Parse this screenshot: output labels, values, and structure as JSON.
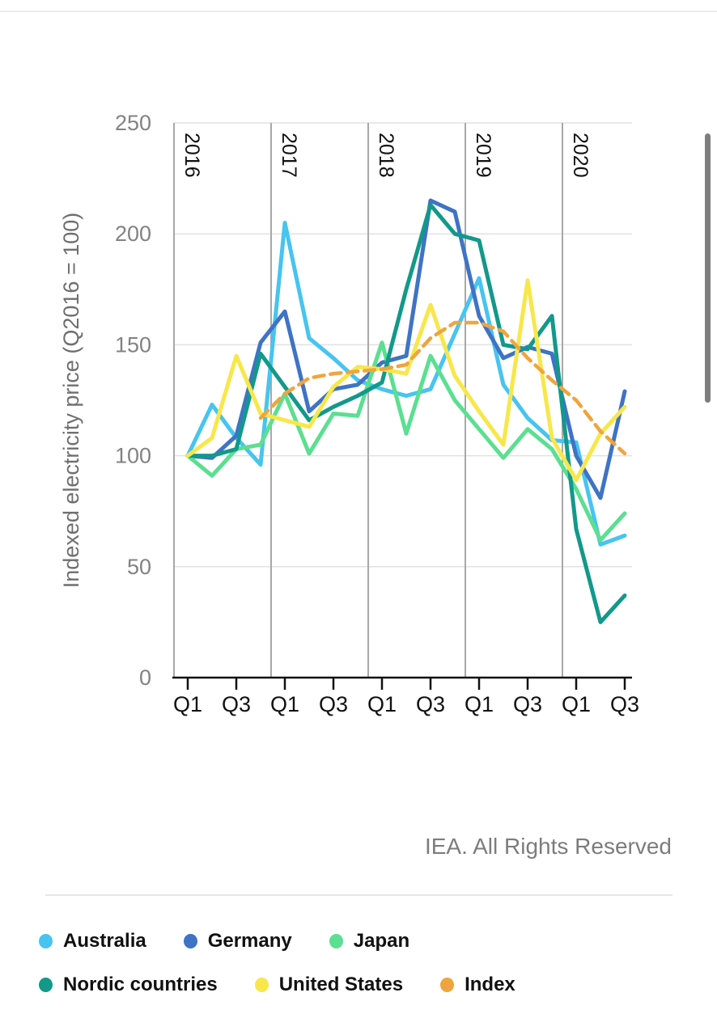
{
  "page": {
    "footer_note": "IEA. All Rights Reserved"
  },
  "y_axis": {
    "title": "Indexed electricity price (Q2016 = 100)",
    "ticks": [
      0,
      50,
      100,
      150,
      200,
      250
    ]
  },
  "x_axis": {
    "tick_labels": [
      "Q1",
      "Q3",
      "Q1",
      "Q3",
      "Q1",
      "Q3",
      "Q1",
      "Q3",
      "Q1",
      "Q3"
    ],
    "year_labels": [
      "2016",
      "2017",
      "2018",
      "2019",
      "2020"
    ]
  },
  "chart_data": {
    "type": "line",
    "title": "",
    "ylabel": "Indexed electricity price (Q2016 = 100)",
    "ylim": [
      0,
      250
    ],
    "grid": true,
    "legend_position": "bottom",
    "x": [
      "2016 Q1",
      "2016 Q2",
      "2016 Q3",
      "2016 Q4",
      "2017 Q1",
      "2017 Q2",
      "2017 Q3",
      "2017 Q4",
      "2018 Q1",
      "2018 Q2",
      "2018 Q3",
      "2018 Q4",
      "2019 Q1",
      "2019 Q2",
      "2019 Q3",
      "2019 Q4",
      "2020 Q1",
      "2020 Q2",
      "2020 Q3"
    ],
    "series": [
      {
        "name": "Australia",
        "color": "#47C4F0",
        "dashed": false,
        "values": [
          100,
          123,
          108,
          96,
          205,
          153,
          144,
          134,
          130,
          127,
          130,
          155,
          180,
          132,
          117,
          107,
          106,
          60,
          64
        ]
      },
      {
        "name": "Germany",
        "color": "#3F73C5",
        "dashed": false,
        "values": [
          100,
          99,
          109,
          151,
          165,
          120,
          130,
          132,
          142,
          145,
          215,
          210,
          163,
          144,
          149,
          146,
          100,
          81,
          129
        ]
      },
      {
        "name": "Japan",
        "color": "#5BDF90",
        "dashed": false,
        "values": [
          100,
          91,
          103,
          105,
          128,
          101,
          119,
          118,
          151,
          110,
          145,
          125,
          112,
          99,
          112,
          103,
          85,
          62,
          74
        ]
      },
      {
        "name": "Nordic countries",
        "color": "#12998A",
        "dashed": false,
        "values": [
          100,
          100,
          103,
          146,
          131,
          116,
          122,
          127,
          133,
          175,
          213,
          200,
          197,
          150,
          148,
          163,
          67,
          25,
          37
        ]
      },
      {
        "name": "United States",
        "color": "#F7E74A",
        "dashed": false,
        "values": [
          100,
          108,
          145,
          119,
          116,
          113,
          131,
          140,
          139,
          137,
          168,
          136,
          120,
          105,
          179,
          108,
          89,
          110,
          122
        ]
      },
      {
        "name": "Index",
        "color": "#F0A43E",
        "dashed": true,
        "values": [
          null,
          null,
          null,
          117,
          128,
          135,
          137,
          138,
          139,
          141,
          153,
          160,
          160,
          156,
          144,
          134,
          125,
          111,
          101
        ]
      }
    ]
  },
  "legend": {
    "rows": [
      [
        0,
        1,
        2
      ],
      [
        3,
        4,
        5
      ]
    ],
    "items": [
      {
        "label": "Australia",
        "color": "#47C4F0"
      },
      {
        "label": "Germany",
        "color": "#3F73C5"
      },
      {
        "label": "Japan",
        "color": "#5BDF90"
      },
      {
        "label": "Nordic countries",
        "color": "#12998A"
      },
      {
        "label": "United States",
        "color": "#F7E74A"
      },
      {
        "label": "Index",
        "color": "#F0A43E"
      }
    ]
  }
}
